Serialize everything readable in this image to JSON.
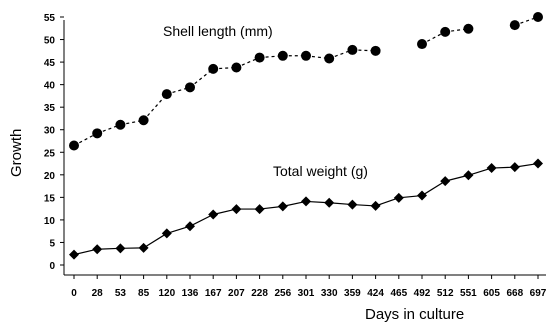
{
  "chart_data": {
    "type": "line",
    "title": "",
    "xlabel": "Days in culture",
    "ylabel": "Growth",
    "categories": [
      "0",
      "28",
      "53",
      "85",
      "120",
      "136",
      "167",
      "207",
      "228",
      "256",
      "301",
      "330",
      "359",
      "424",
      "465",
      "492",
      "512",
      "551",
      "605",
      "668",
      "697"
    ],
    "ylim": [
      0,
      55
    ],
    "yticks": [
      0,
      5,
      10,
      15,
      20,
      25,
      30,
      35,
      40,
      45,
      50,
      55
    ],
    "grid": false,
    "legend": "none",
    "series": [
      {
        "name": "Shell length (mm)",
        "marker": "circle",
        "line": "dashed",
        "color": "#000000",
        "values": [
          26.5,
          29.2,
          31.1,
          32.1,
          37.9,
          39.4,
          43.5,
          43.8,
          46.0,
          46.4,
          46.4,
          45.8,
          47.7,
          47.5,
          null,
          49.0,
          51.7,
          52.4,
          null,
          53.2,
          55.0
        ]
      },
      {
        "name": "Total weight (g)",
        "marker": "diamond",
        "line": "solid",
        "color": "#000000",
        "values": [
          2.3,
          3.5,
          3.7,
          3.8,
          7.0,
          8.6,
          11.2,
          12.4,
          12.4,
          13.0,
          14.1,
          13.8,
          13.4,
          13.1,
          14.9,
          15.4,
          18.6,
          19.9,
          21.5,
          21.7,
          22.5
        ]
      }
    ]
  }
}
